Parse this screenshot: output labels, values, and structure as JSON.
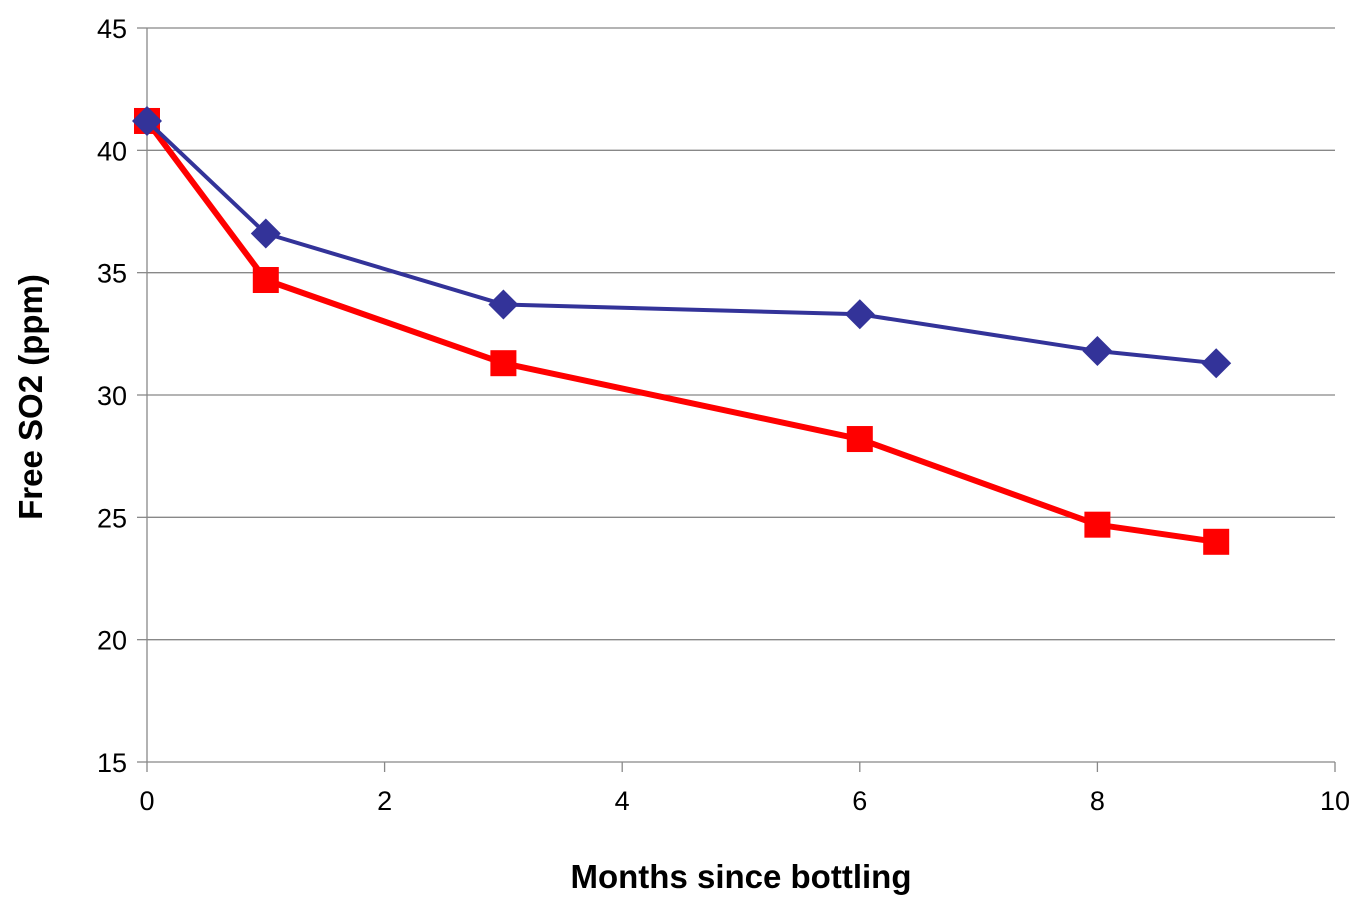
{
  "chart_data": {
    "type": "line",
    "title": "",
    "xlabel": "Months since bottling",
    "ylabel": "Free SO2 (ppm)",
    "xlim": [
      0,
      10
    ],
    "ylim": [
      15,
      45
    ],
    "x_ticks": [
      0,
      2,
      4,
      6,
      8,
      10
    ],
    "y_ticks": [
      15,
      20,
      25,
      30,
      35,
      40,
      45
    ],
    "grid": "horizontal",
    "legend": "none",
    "series": [
      {
        "color": "#333399",
        "marker": "diamond",
        "x": [
          0,
          1,
          3,
          6,
          8,
          9
        ],
        "y": [
          41.2,
          36.6,
          33.7,
          33.3,
          31.8,
          31.3
        ]
      },
      {
        "color": "#ff0000",
        "marker": "square",
        "x": [
          0,
          1,
          3,
          6,
          8,
          9
        ],
        "y": [
          41.2,
          34.7,
          31.3,
          28.2,
          24.7,
          24.0
        ]
      }
    ]
  }
}
